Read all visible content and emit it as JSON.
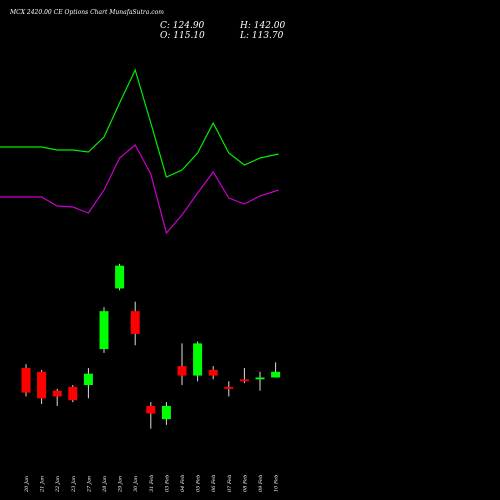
{
  "chart_data": {
    "type": "candlestick",
    "title": "MCX 2420.00 CE Options Chart MunafaSutra.com",
    "ohlc_readout": {
      "close": "C: 124.90",
      "open": "O: 115.10",
      "high": "H: 142.00",
      "low": "L: 113.70"
    },
    "categories": [
      "20 Jan",
      "21 Jan",
      "22 Jan",
      "23 Jan",
      "27 Jan",
      "28 Jan",
      "29 Jan",
      "30 Jan",
      "31 Feb",
      "03 Feb",
      "04 Feb",
      "05 Feb",
      "06 Feb",
      "07 Feb",
      "08 Feb",
      "09 Feb",
      "10 Feb"
    ],
    "candles": [
      {
        "open": 58,
        "close": 45,
        "high": 60,
        "low": 43
      },
      {
        "open": 56,
        "close": 42,
        "high": 57,
        "low": 39
      },
      {
        "open": 46,
        "close": 43,
        "high": 47,
        "low": 38
      },
      {
        "open": 48,
        "close": 41,
        "high": 49,
        "low": 40
      },
      {
        "open": 49,
        "close": 55,
        "high": 58,
        "low": 42
      },
      {
        "open": 68,
        "close": 88,
        "high": 90,
        "low": 66
      },
      {
        "open": 100,
        "close": 112,
        "high": 113,
        "low": 99
      },
      {
        "open": 88,
        "close": 76,
        "high": 93,
        "low": 70
      },
      {
        "open": 38,
        "close": 34,
        "high": 40,
        "low": 26
      },
      {
        "open": 31,
        "close": 38,
        "high": 40,
        "low": 28
      },
      {
        "open": 59,
        "close": 54,
        "high": 71,
        "low": 49
      },
      {
        "open": 54,
        "close": 71,
        "high": 72,
        "low": 51
      },
      {
        "open": 57,
        "close": 54,
        "high": 59,
        "low": 52
      },
      {
        "open": 48,
        "close": 47,
        "high": 51,
        "low": 43
      },
      {
        "open": 52,
        "close": 51,
        "high": 58,
        "low": 50
      },
      {
        "open": 52,
        "close": 53,
        "high": 56,
        "low": 46
      },
      {
        "open": 53,
        "close": 56,
        "high": 61,
        "low": 53
      }
    ],
    "band_upper": [
      148,
      148,
      145,
      145,
      143,
      158,
      192,
      225,
      172,
      118,
      125,
      142,
      172,
      142,
      130,
      137,
      141
    ],
    "band_lower": [
      98,
      98,
      89,
      88,
      82,
      105,
      137,
      150,
      121,
      62,
      80,
      102,
      123,
      97,
      91,
      99,
      105
    ],
    "colors": {
      "background": "#000000",
      "up": "#00ff00",
      "down": "#ff0000",
      "upper_band": "#00ee00",
      "lower_band": "#cc00cc",
      "text": "#ffffff"
    }
  }
}
